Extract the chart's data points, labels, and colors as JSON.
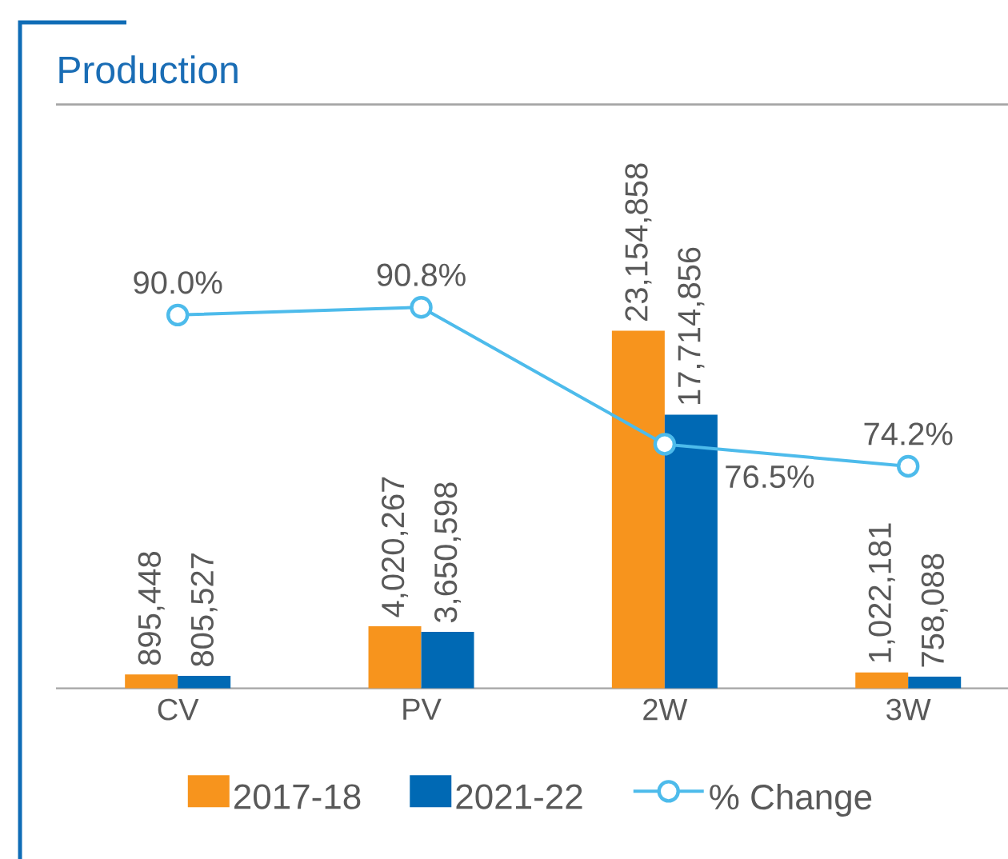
{
  "chart_data": {
    "type": "bar",
    "title": "Production",
    "categories": [
      "CV",
      "PV",
      "2W",
      "3W"
    ],
    "series": [
      {
        "name": "2017-18",
        "color": "#f7941d",
        "values": [
          895448,
          4020267,
          23154858,
          1022181
        ],
        "value_labels": [
          "895,448",
          "4,020,267",
          "23,154,858",
          "1,022,181"
        ]
      },
      {
        "name": "2021-22",
        "color": "#0069b4",
        "values": [
          805527,
          3650598,
          17714856,
          758088
        ],
        "value_labels": [
          "805,527",
          "3,650,598",
          "17,714,856",
          "758,088"
        ]
      },
      {
        "name": "% Change",
        "type": "line",
        "axis": "y2",
        "marker": "circle",
        "color": "#4dbbeb",
        "values": [
          90.0,
          90.8,
          76.5,
          74.2
        ],
        "value_labels": [
          "90.0%",
          "90.8%",
          "76.5%",
          "74.2%"
        ]
      }
    ],
    "ylim": [
      0,
      37800000
    ],
    "y2lim": [
      51,
      112
    ],
    "legend": "bottom",
    "tick_labels": "x"
  }
}
